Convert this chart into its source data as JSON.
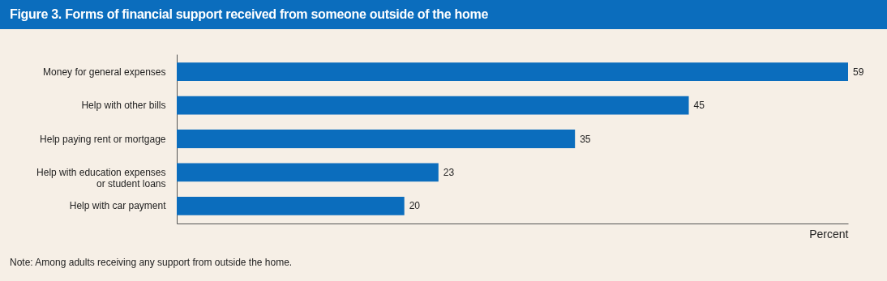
{
  "chart_data": {
    "type": "bar",
    "orientation": "horizontal",
    "title": "Figure 3. Forms of financial support received from someone outside of the home",
    "categories": [
      "Money for general expenses",
      "Help with other bills",
      "Help paying rent or mortgage",
      "Help with education expenses or student loans",
      "Help with car payment"
    ],
    "values": [
      59,
      45,
      35,
      23,
      20
    ],
    "color": "#0b6dbd",
    "data_labels": true,
    "xlabel": "Percent",
    "grid": false,
    "annotations": [
      "Note: Among adults receiving any support from outside the home."
    ]
  }
}
